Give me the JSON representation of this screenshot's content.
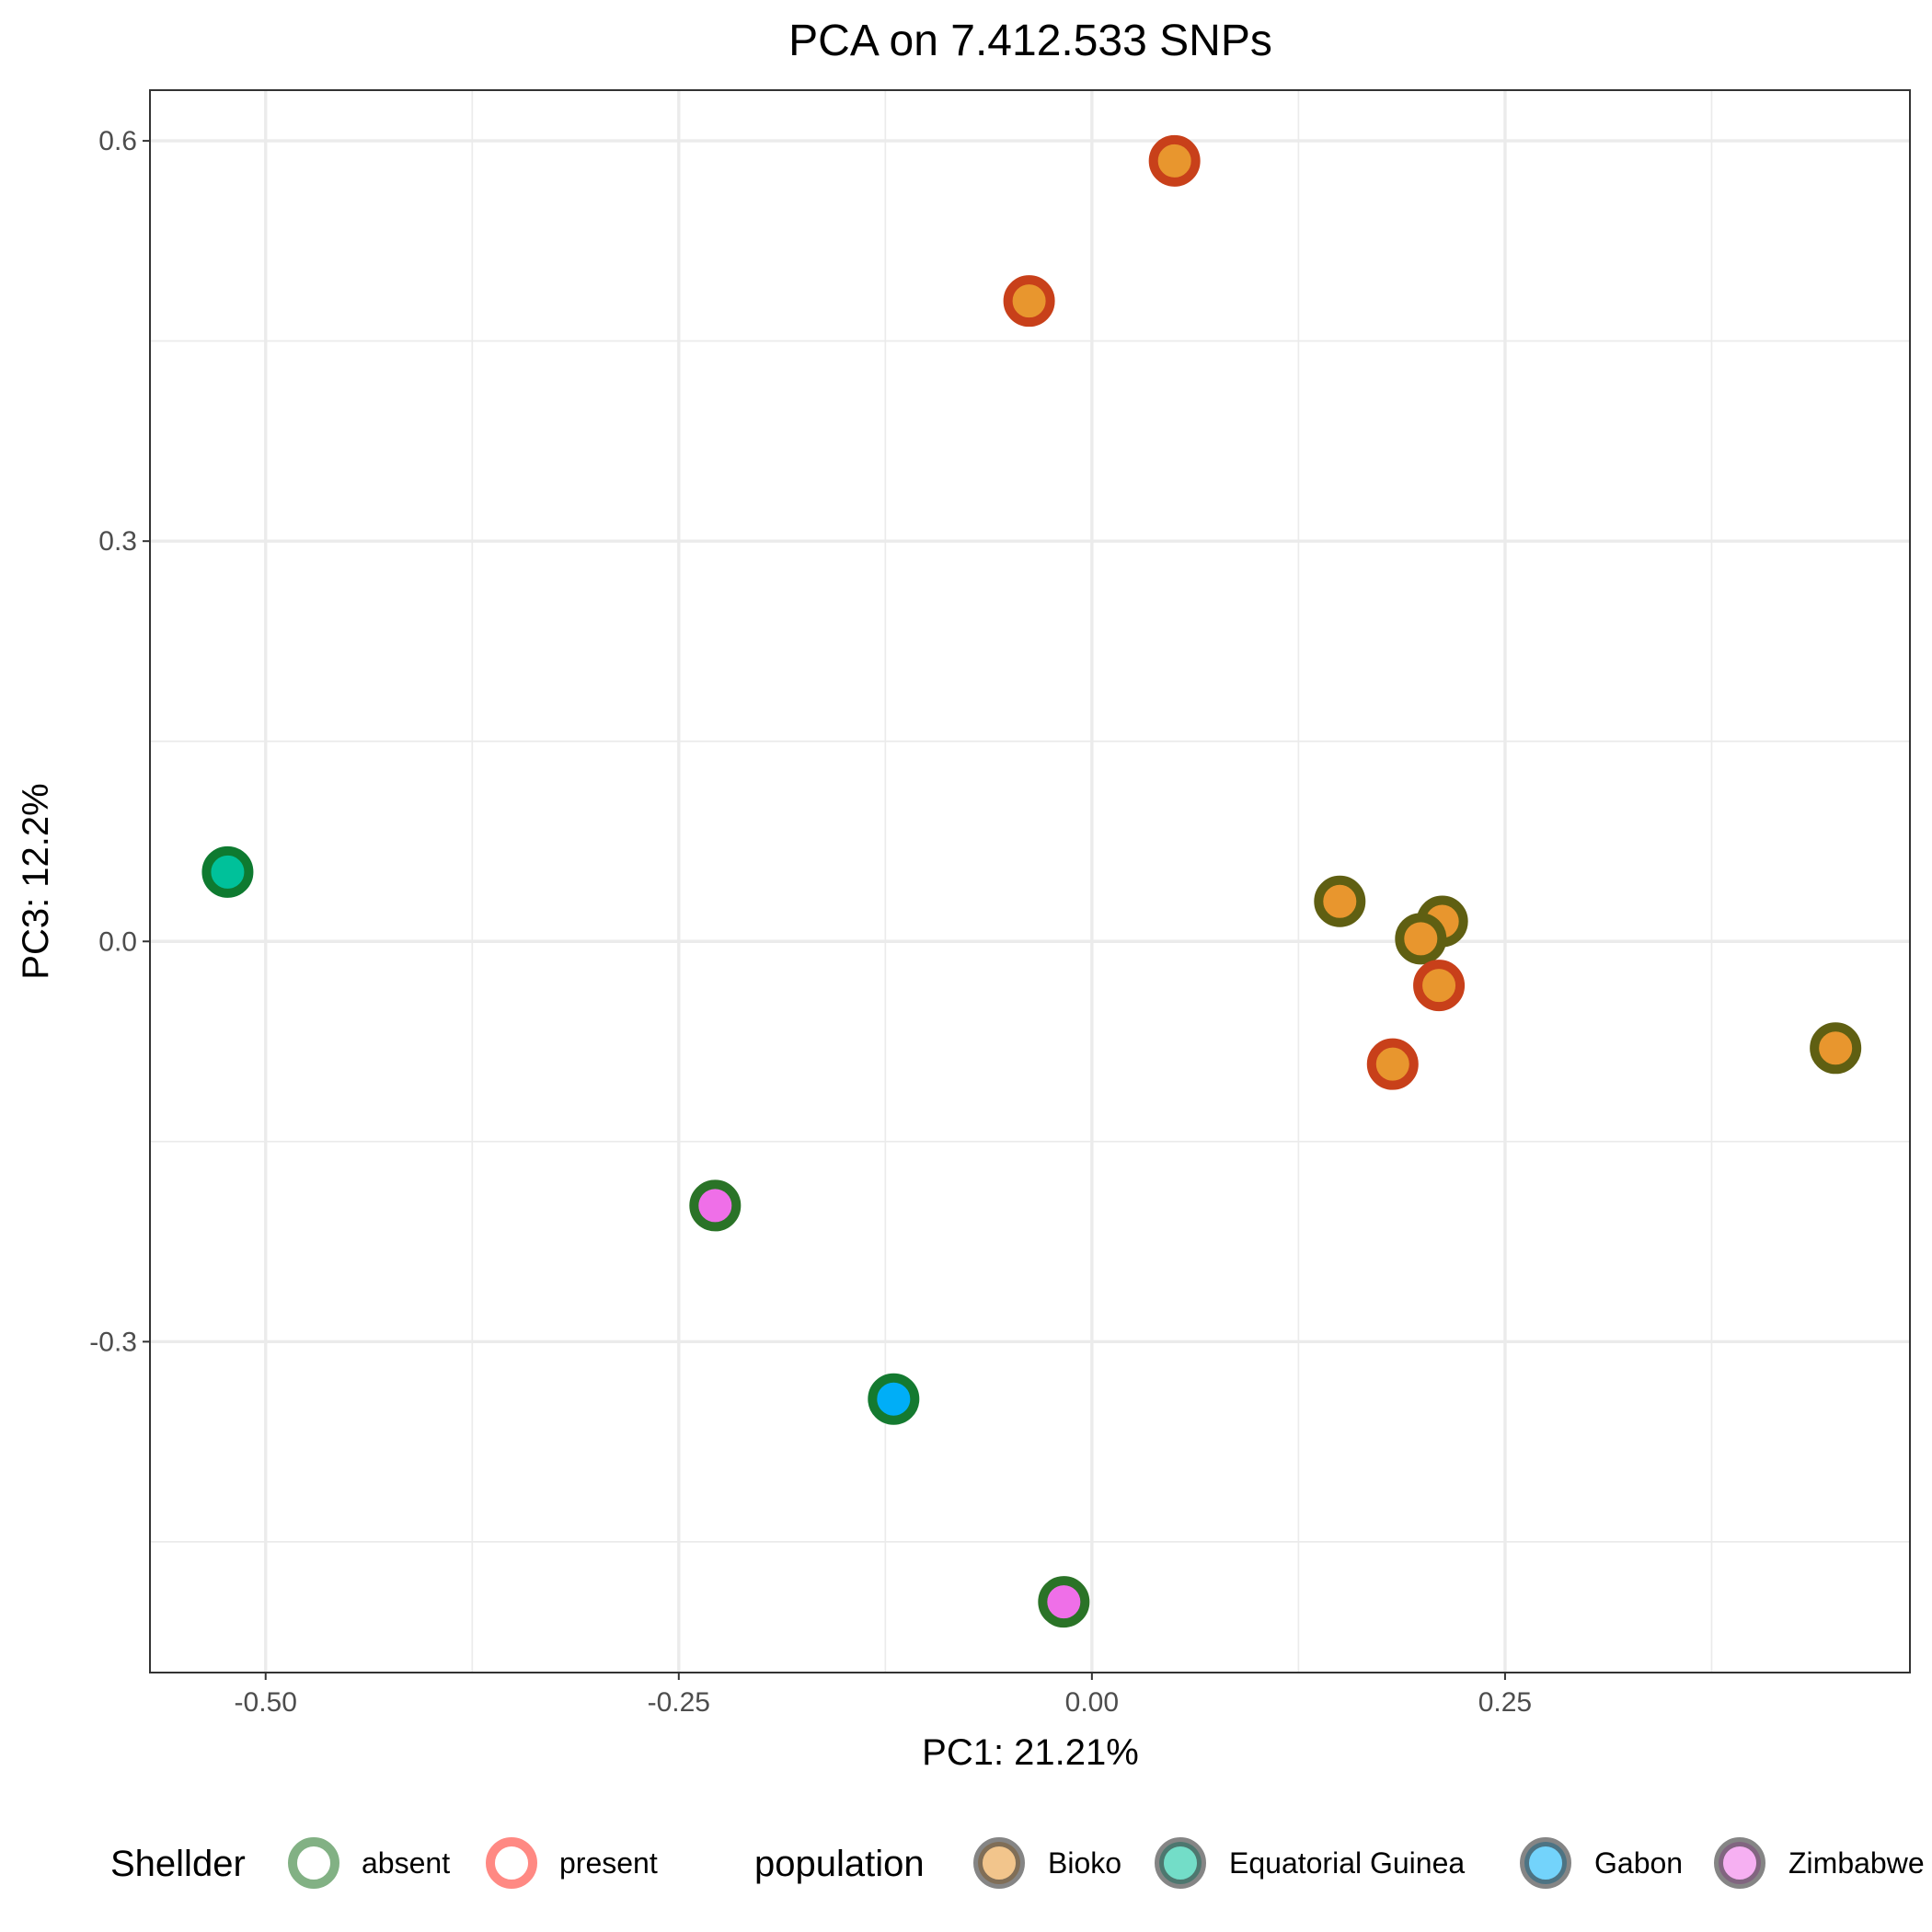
{
  "chart_data": {
    "type": "scatter",
    "title": "PCA on 7.412.533 SNPs",
    "xlabel": "PC1: 21.21%",
    "ylabel": "PC3: 12.2%",
    "xlim": [
      -0.57,
      0.495
    ],
    "ylim": [
      -0.548,
      0.638
    ],
    "x_ticks": [
      -0.5,
      -0.25,
      0.0,
      0.25
    ],
    "x_tick_labels": [
      "-0.50",
      "-0.25",
      "0.00",
      "0.25"
    ],
    "y_ticks": [
      -0.3,
      0.0,
      0.3,
      0.6
    ],
    "y_tick_labels": [
      "-0.3",
      "0.0",
      "0.3",
      "0.6"
    ],
    "grid": true,
    "legend_placement": "bottom",
    "legends": [
      {
        "title": "Shellder",
        "aesthetic": "outline",
        "entries": [
          {
            "label": "absent",
            "stroke": "#2e7d32"
          },
          {
            "label": "present",
            "stroke": "#ff3b30"
          }
        ]
      },
      {
        "title": "population",
        "aesthetic": "fill",
        "entries": [
          {
            "label": "Bioko",
            "fill": "#e8962e"
          },
          {
            "label": "Equatorial Guinea",
            "fill": "#00c19a"
          },
          {
            "label": "Gabon",
            "fill": "#00aef7"
          },
          {
            "label": "Zimbabwe",
            "fill": "#ef6fe8"
          }
        ]
      }
    ],
    "points": [
      {
        "x": 0.05,
        "y": 0.585,
        "population": "Bioko",
        "shellder": "present"
      },
      {
        "x": -0.038,
        "y": 0.48,
        "population": "Bioko",
        "shellder": "present"
      },
      {
        "x": -0.523,
        "y": 0.052,
        "population": "Equatorial Guinea",
        "shellder": "absent"
      },
      {
        "x": 0.15,
        "y": 0.03,
        "population": "Bioko",
        "shellder": "absent"
      },
      {
        "x": 0.212,
        "y": 0.015,
        "population": "Bioko",
        "shellder": "absent"
      },
      {
        "x": 0.199,
        "y": 0.002,
        "population": "Bioko",
        "shellder": "absent"
      },
      {
        "x": 0.21,
        "y": -0.033,
        "population": "Bioko",
        "shellder": "present"
      },
      {
        "x": 0.182,
        "y": -0.092,
        "population": "Bioko",
        "shellder": "present"
      },
      {
        "x": 0.45,
        "y": -0.08,
        "population": "Bioko",
        "shellder": "absent"
      },
      {
        "x": -0.228,
        "y": -0.198,
        "population": "Zimbabwe",
        "shellder": "absent"
      },
      {
        "x": -0.12,
        "y": -0.343,
        "population": "Gabon",
        "shellder": "absent"
      },
      {
        "x": -0.017,
        "y": -0.495,
        "population": "Zimbabwe",
        "shellder": "absent"
      }
    ]
  }
}
